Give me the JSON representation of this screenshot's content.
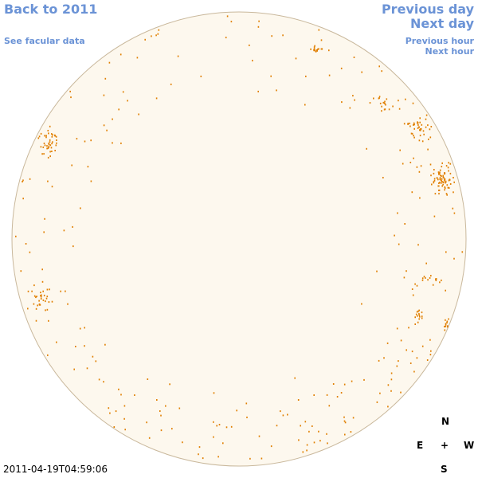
{
  "nav": {
    "back_label": "Back to 2011",
    "facular_label": "See facular data",
    "prev_day_label": "Previous day",
    "next_day_label": "Next day",
    "prev_hour_label": "Previous hour",
    "next_hour_label": "Next hour"
  },
  "timestamp": "2011-04-19T04:59:06",
  "compass": {
    "n": "N",
    "e": "E",
    "center": "+",
    "w": "W",
    "s": "S"
  },
  "colors": {
    "link": "#6b93d6",
    "disk_fill": "#fdf8ee",
    "disk_edge": "#c9b89c",
    "facula": "#e07f00"
  }
}
